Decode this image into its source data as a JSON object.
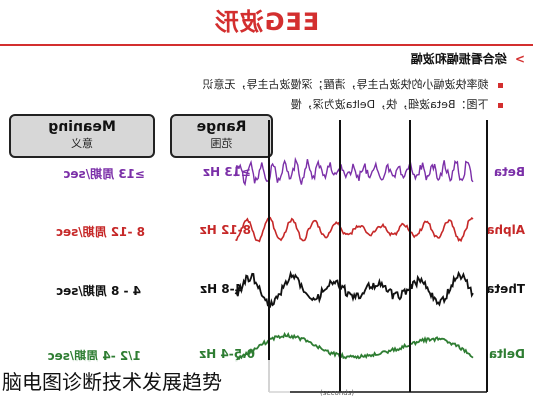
{
  "header": {
    "title": "EEG波形"
  },
  "section": {
    "heading": "综合看振幅和波幅",
    "bullets": [
      "频率快波幅小的快波占主导，清醒；深慢波占主导，无意识",
      "下图：Beta波细，快，Delta波为深，慢"
    ]
  },
  "table": {
    "range_header": {
      "en": "Range",
      "zh": "范围"
    },
    "meaning_header": {
      "en": "Meaning",
      "zh": "意义"
    },
    "rows": [
      {
        "name": "Beta",
        "range": "≥13 Hz",
        "meaning": "≥13 周期/sec",
        "color": "#7b2fa8"
      },
      {
        "name": "Alpha",
        "range": "8-12 Hz",
        "meaning": "8 -12 周期/sec",
        "color": "#c62828"
      },
      {
        "name": "Theta",
        "range": "4-8 Hz",
        "meaning": "4 - 8 周期/sec",
        "color": "#111111"
      },
      {
        "name": "Delta",
        "range": "0.5-4 Hz",
        "meaning": "1/2 -4 周期/sec",
        "color": "#2e7d32"
      }
    ]
  },
  "axis": {
    "unit": "(seconds)"
  },
  "caption": "脑电图诊断技术发展趋势"
}
